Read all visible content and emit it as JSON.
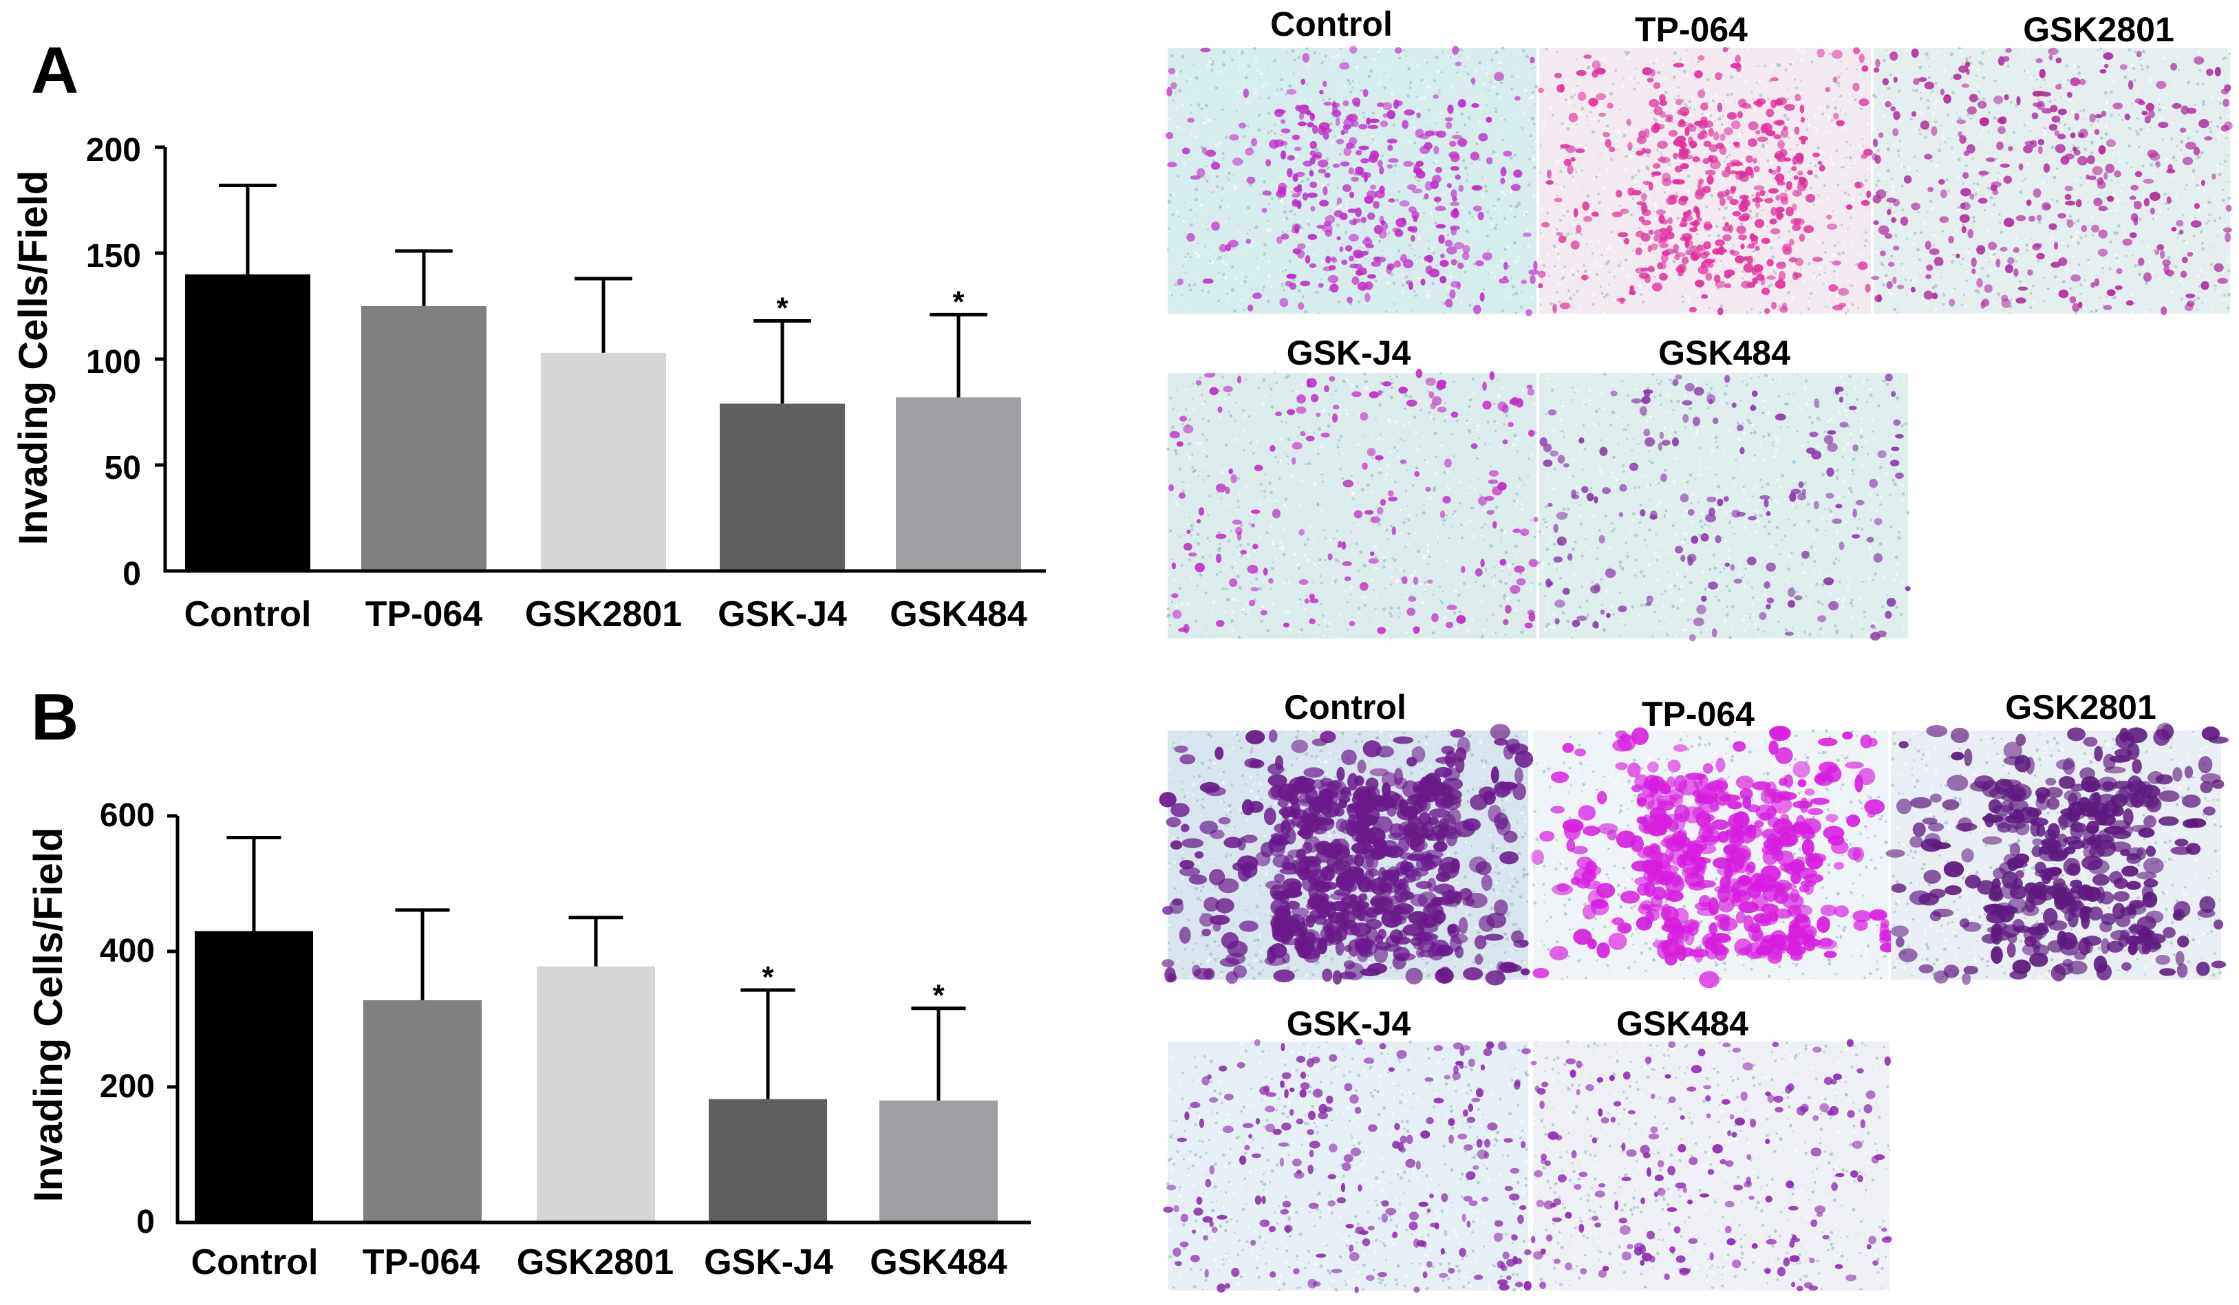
{
  "panels": [
    {
      "letter": "A",
      "chart_data": {
        "type": "bar",
        "ylabel": "Invading Cells/Field",
        "xlabel": "",
        "ylim": [
          0,
          200
        ],
        "yticks": [
          0,
          50,
          100,
          150,
          200
        ],
        "categories": [
          "Control",
          "TP-064",
          "GSK2801",
          "GSK-J4",
          "GSK484"
        ],
        "values": [
          140,
          125,
          103,
          79,
          82
        ],
        "errors": [
          42,
          26,
          35,
          39,
          39
        ],
        "significance": [
          "",
          "",
          "",
          "*",
          "*"
        ],
        "bar_colors": [
          "#000000",
          "#808080",
          "#d6d6d6",
          "#5f5f5f",
          "#9e9ea3"
        ],
        "grid": false
      },
      "micrographs": [
        {
          "label": "Control",
          "stain": "#c02bc7",
          "density": 0.55,
          "bg": "#d7ecec"
        },
        {
          "label": "TP-064",
          "stain": "#e0309a",
          "density": 0.75,
          "bg": "#f2eaf0"
        },
        {
          "label": "GSK2801",
          "stain": "#b02c9c",
          "density": 0.45,
          "bg": "#e4eeee"
        },
        {
          "label": "GSK-J4",
          "stain": "#c12cc4",
          "density": 0.2,
          "bg": "#dcecec"
        },
        {
          "label": "GSK484",
          "stain": "#8a3aa8",
          "density": 0.2,
          "bg": "#dfeded"
        }
      ]
    },
    {
      "letter": "B",
      "chart_data": {
        "type": "bar",
        "ylabel": "Invading Cells/Field",
        "xlabel": "",
        "ylim": [
          0,
          600
        ],
        "yticks": [
          0,
          200,
          400,
          600
        ],
        "categories": [
          "Control",
          "TP-064",
          "GSK2801",
          "GSK-J4",
          "GSK484"
        ],
        "values": [
          430,
          328,
          378,
          182,
          180
        ],
        "errors": [
          138,
          133,
          72,
          161,
          136
        ],
        "significance": [
          "",
          "",
          "",
          "*",
          "*"
        ],
        "bar_colors": [
          "#000000",
          "#808080",
          "#d6d6d6",
          "#5f5f5f",
          "#9e9ea3"
        ],
        "grid": false
      },
      "micrographs": [
        {
          "label": "Control",
          "stain": "#6a1a8a",
          "density": 1.0,
          "bg": "#d8e4ee"
        },
        {
          "label": "TP-064",
          "stain": "#d81ee0",
          "density": 0.7,
          "bg": "#eef4f8"
        },
        {
          "label": "GSK2801",
          "stain": "#5e1a7e",
          "density": 0.6,
          "bg": "#e8eef4"
        },
        {
          "label": "GSK-J4",
          "stain": "#8a2aa8",
          "density": 0.3,
          "bg": "#e6eef6"
        },
        {
          "label": "GSK484",
          "stain": "#8c2ab0",
          "density": 0.25,
          "bg": "#eef0f6"
        }
      ]
    }
  ]
}
